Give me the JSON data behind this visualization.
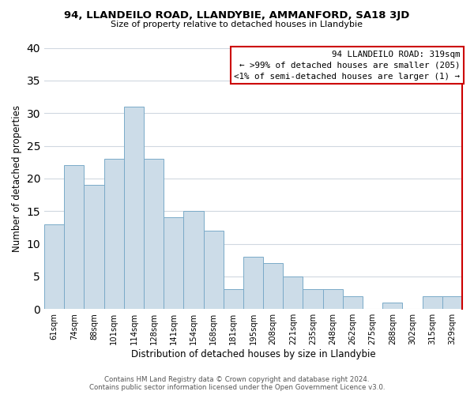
{
  "title": "94, LLANDEILO ROAD, LLANDYBIE, AMMANFORD, SA18 3JD",
  "subtitle": "Size of property relative to detached houses in Llandybie",
  "xlabel": "Distribution of detached houses by size in Llandybie",
  "ylabel": "Number of detached properties",
  "footer_line1": "Contains HM Land Registry data © Crown copyright and database right 2024.",
  "footer_line2": "Contains public sector information licensed under the Open Government Licence v3.0.",
  "bin_labels": [
    "61sqm",
    "74sqm",
    "88sqm",
    "101sqm",
    "114sqm",
    "128sqm",
    "141sqm",
    "154sqm",
    "168sqm",
    "181sqm",
    "195sqm",
    "208sqm",
    "221sqm",
    "235sqm",
    "248sqm",
    "262sqm",
    "275sqm",
    "288sqm",
    "302sqm",
    "315sqm",
    "329sqm"
  ],
  "bar_values": [
    13,
    22,
    19,
    23,
    31,
    23,
    14,
    15,
    12,
    3,
    8,
    7,
    5,
    3,
    3,
    2,
    0,
    1,
    0,
    2,
    2
  ],
  "bar_color": "#ccdce8",
  "bar_edge_color": "#7aaac8",
  "reference_line_color": "#cc0000",
  "annotation_title": "94 LLANDEILO ROAD: 319sqm",
  "annotation_line1": "← >99% of detached houses are smaller (205)",
  "annotation_line2": "<1% of semi-detached houses are larger (1) →",
  "annotation_box_color": "white",
  "annotation_box_edge_color": "#cc0000",
  "ylim": [
    0,
    40
  ],
  "yticks": [
    0,
    5,
    10,
    15,
    20,
    25,
    30,
    35,
    40
  ],
  "bg_color": "white",
  "grid_color": "#d0d8e0"
}
